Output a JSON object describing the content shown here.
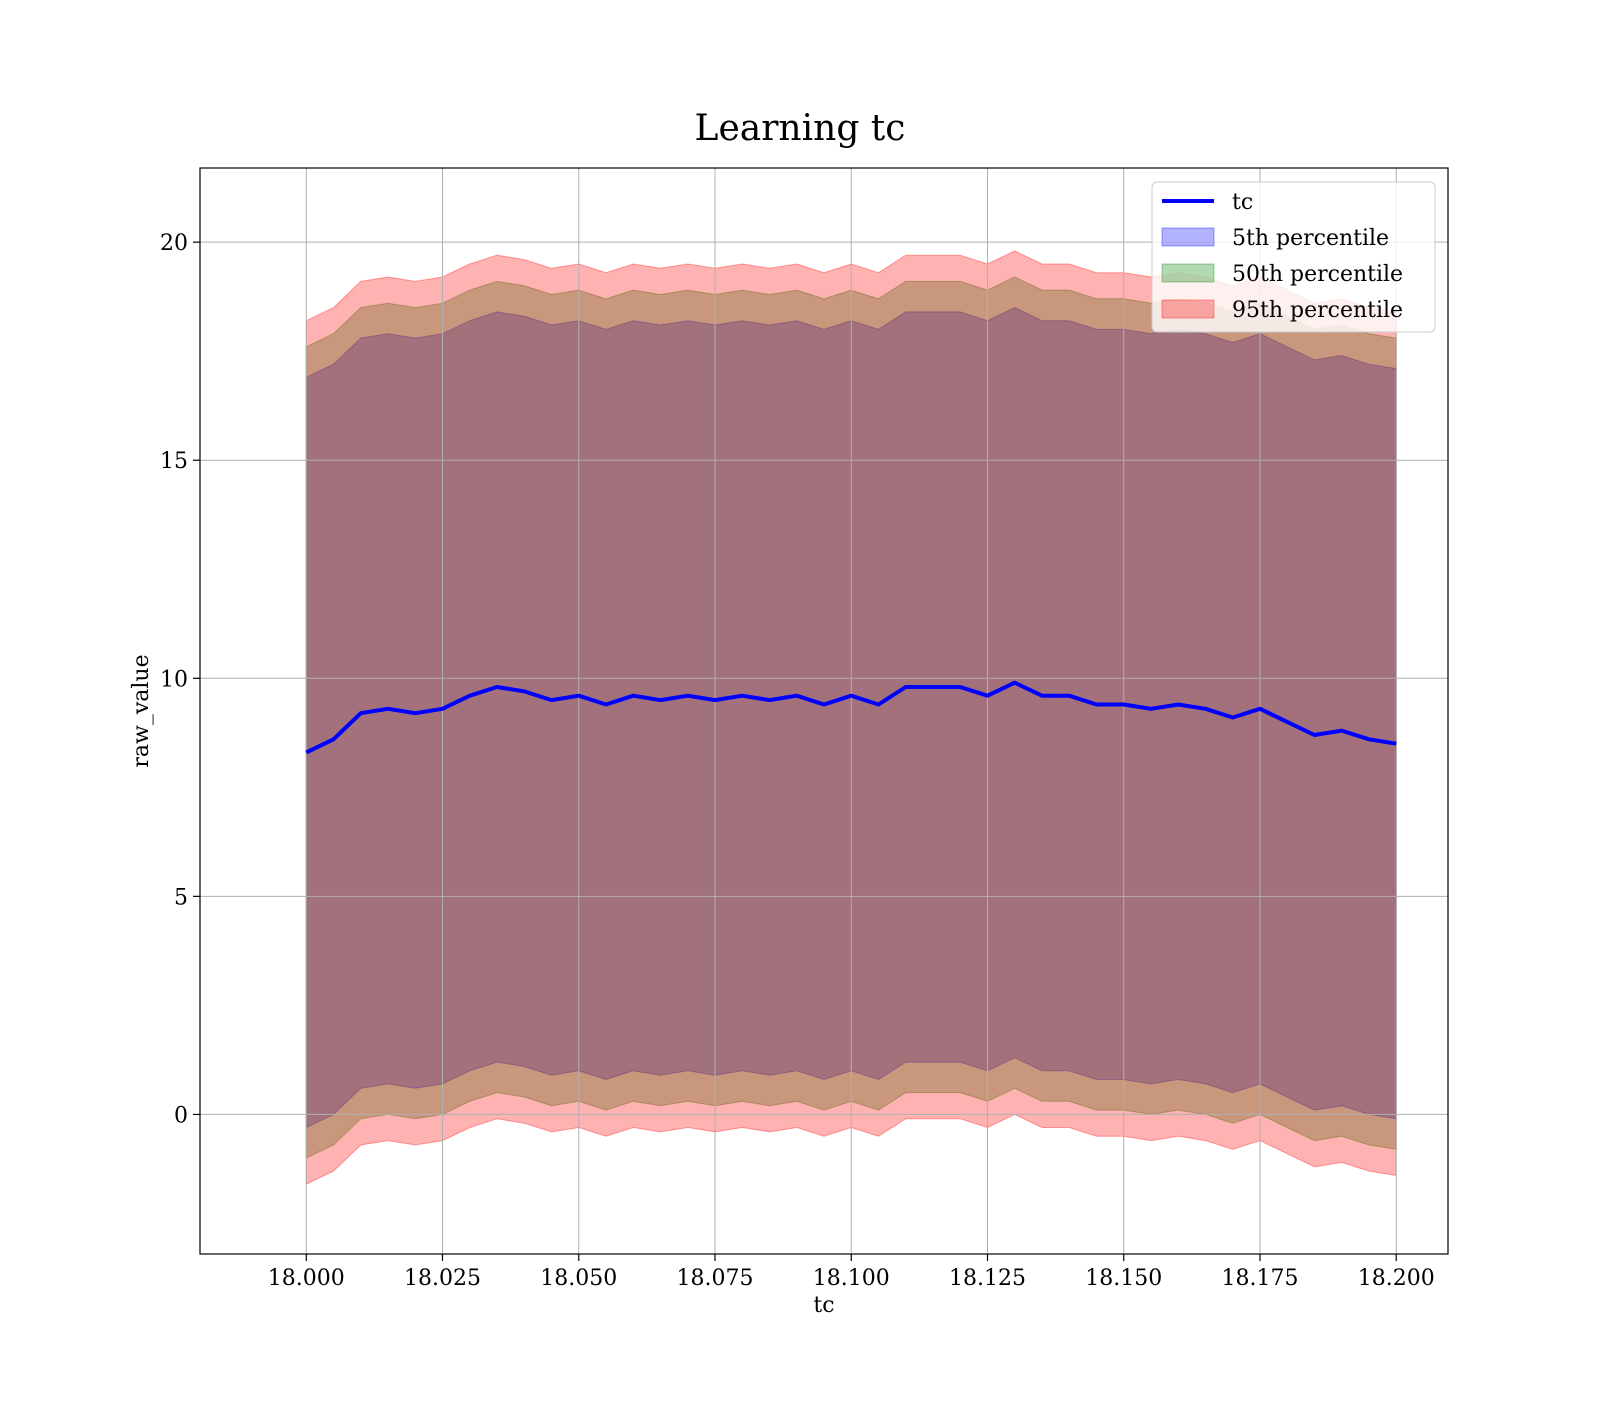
{
  "chart_data": {
    "type": "area",
    "title": "Learning tc",
    "xlabel": "tc",
    "ylabel": "raw_value",
    "xlim": [
      17.9805,
      18.2095
    ],
    "ylim": [
      -3.2,
      21.7
    ],
    "x_ticks": [
      "18.000",
      "18.025",
      "18.050",
      "18.075",
      "18.100",
      "18.125",
      "18.150",
      "18.175",
      "18.200"
    ],
    "x_tick_values": [
      18.0,
      18.025,
      18.05,
      18.075,
      18.1,
      18.125,
      18.15,
      18.175,
      18.2
    ],
    "y_ticks": [
      "0",
      "5",
      "10",
      "15",
      "20"
    ],
    "y_tick_values": [
      0,
      5,
      10,
      15,
      20
    ],
    "grid": true,
    "legend_position": "top-right",
    "x": [
      18.0,
      18.005,
      18.01,
      18.015,
      18.02,
      18.025,
      18.03,
      18.035,
      18.04,
      18.045,
      18.05,
      18.055,
      18.06,
      18.065,
      18.07,
      18.075,
      18.08,
      18.085,
      18.09,
      18.095,
      18.1,
      18.105,
      18.11,
      18.115,
      18.12,
      18.125,
      18.13,
      18.135,
      18.14,
      18.145,
      18.15,
      18.155,
      18.16,
      18.165,
      18.17,
      18.175,
      18.18,
      18.185,
      18.19,
      18.195,
      18.2
    ],
    "series": [
      {
        "name": "tc",
        "kind": "line",
        "color": "#0000ff",
        "values": [
          8.3,
          8.6,
          9.2,
          9.3,
          9.2,
          9.3,
          9.6,
          9.8,
          9.7,
          9.5,
          9.6,
          9.4,
          9.6,
          9.5,
          9.6,
          9.5,
          9.6,
          9.5,
          9.6,
          9.4,
          9.6,
          9.4,
          9.8,
          9.8,
          9.8,
          9.6,
          9.9,
          9.6,
          9.6,
          9.4,
          9.4,
          9.3,
          9.4,
          9.3,
          9.1,
          9.3,
          9.0,
          8.7,
          8.8,
          8.6,
          8.5
        ]
      },
      {
        "name": "5th percentile",
        "kind": "band",
        "color": "#0000ff",
        "lower": [
          -0.3,
          0.0,
          0.6,
          0.7,
          0.6,
          0.7,
          1.0,
          1.2,
          1.1,
          0.9,
          1.0,
          0.8,
          1.0,
          0.9,
          1.0,
          0.9,
          1.0,
          0.9,
          1.0,
          0.8,
          1.0,
          0.8,
          1.2,
          1.2,
          1.2,
          1.0,
          1.3,
          1.0,
          1.0,
          0.8,
          0.8,
          0.7,
          0.8,
          0.7,
          0.5,
          0.7,
          0.4,
          0.1,
          0.2,
          0.0,
          -0.1
        ],
        "upper": [
          16.9,
          17.2,
          17.8,
          17.9,
          17.8,
          17.9,
          18.2,
          18.4,
          18.3,
          18.1,
          18.2,
          18.0,
          18.2,
          18.1,
          18.2,
          18.1,
          18.2,
          18.1,
          18.2,
          18.0,
          18.2,
          18.0,
          18.4,
          18.4,
          18.4,
          18.2,
          18.5,
          18.2,
          18.2,
          18.0,
          18.0,
          17.9,
          18.0,
          17.9,
          17.7,
          17.9,
          17.6,
          17.3,
          17.4,
          17.2,
          17.1
        ]
      },
      {
        "name": "50th percentile",
        "kind": "band",
        "color": "#008000",
        "lower": [
          -1.0,
          -0.7,
          -0.1,
          0.0,
          -0.1,
          0.0,
          0.3,
          0.5,
          0.4,
          0.2,
          0.3,
          0.1,
          0.3,
          0.2,
          0.3,
          0.2,
          0.3,
          0.2,
          0.3,
          0.1,
          0.3,
          0.1,
          0.5,
          0.5,
          0.5,
          0.3,
          0.6,
          0.3,
          0.3,
          0.1,
          0.1,
          0.0,
          0.1,
          0.0,
          -0.2,
          0.0,
          -0.3,
          -0.6,
          -0.5,
          -0.7,
          -0.8
        ],
        "upper": [
          17.6,
          17.9,
          18.5,
          18.6,
          18.5,
          18.6,
          18.9,
          19.1,
          19.0,
          18.8,
          18.9,
          18.7,
          18.9,
          18.8,
          18.9,
          18.8,
          18.9,
          18.8,
          18.9,
          18.7,
          18.9,
          18.7,
          19.1,
          19.1,
          19.1,
          18.9,
          19.2,
          18.9,
          18.9,
          18.7,
          18.7,
          18.6,
          18.7,
          18.6,
          18.4,
          18.6,
          18.3,
          18.0,
          18.1,
          17.9,
          17.8
        ]
      },
      {
        "name": "95th percentile",
        "kind": "band",
        "color": "#ff0000",
        "lower": [
          -1.6,
          -1.3,
          -0.7,
          -0.6,
          -0.7,
          -0.6,
          -0.3,
          -0.1,
          -0.2,
          -0.4,
          -0.3,
          -0.5,
          -0.3,
          -0.4,
          -0.3,
          -0.4,
          -0.3,
          -0.4,
          -0.3,
          -0.5,
          -0.3,
          -0.5,
          -0.1,
          -0.1,
          -0.1,
          -0.3,
          0.0,
          -0.3,
          -0.3,
          -0.5,
          -0.5,
          -0.6,
          -0.5,
          -0.6,
          -0.8,
          -0.6,
          -0.9,
          -1.2,
          -1.1,
          -1.3,
          -1.4
        ],
        "upper": [
          18.2,
          18.5,
          19.1,
          19.2,
          19.1,
          19.2,
          19.5,
          19.7,
          19.6,
          19.4,
          19.5,
          19.3,
          19.5,
          19.4,
          19.5,
          19.4,
          19.5,
          19.4,
          19.5,
          19.3,
          19.5,
          19.3,
          19.7,
          19.7,
          19.7,
          19.5,
          19.8,
          19.5,
          19.5,
          19.3,
          19.3,
          19.2,
          19.3,
          19.2,
          19.0,
          19.2,
          18.9,
          18.6,
          18.7,
          18.5,
          18.4
        ]
      }
    ]
  }
}
